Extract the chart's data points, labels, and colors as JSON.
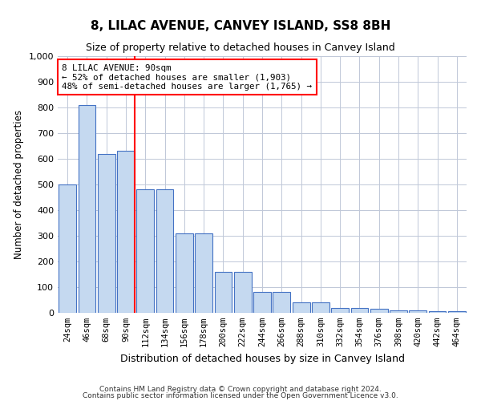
{
  "title": "8, LILAC AVENUE, CANVEY ISLAND, SS8 8BH",
  "subtitle": "Size of property relative to detached houses in Canvey Island",
  "xlabel": "Distribution of detached houses by size in Canvey Island",
  "ylabel": "Number of detached properties",
  "footer1": "Contains HM Land Registry data © Crown copyright and database right 2024.",
  "footer2": "Contains public sector information licensed under the Open Government Licence v3.0.",
  "annotation_title": "8 LILAC AVENUE: 90sqm",
  "annotation_line2": "← 52% of detached houses are smaller (1,903)",
  "annotation_line3": "48% of semi-detached houses are larger (1,765) →",
  "marker_bin": 3,
  "categories": [
    "24sqm",
    "46sqm",
    "68sqm",
    "90sqm",
    "112sqm",
    "134sqm",
    "156sqm",
    "178sqm",
    "200sqm",
    "222sqm",
    "244sqm",
    "266sqm",
    "288sqm",
    "310sqm",
    "332sqm",
    "354sqm",
    "376sqm",
    "398sqm",
    "420sqm",
    "442sqm",
    "464sqm"
  ],
  "values": [
    500,
    810,
    620,
    630,
    480,
    480,
    310,
    310,
    160,
    160,
    80,
    80,
    40,
    40,
    20,
    20,
    15,
    10,
    10,
    5,
    5
  ],
  "bar_color": "#c5d9f0",
  "bar_edge_color": "#4472c4",
  "highlight_color": "#ff0000",
  "background_color": "#ffffff",
  "grid_color": "#c0c8d8",
  "ylim": [
    0,
    1000
  ],
  "yticks": [
    0,
    100,
    200,
    300,
    400,
    500,
    600,
    700,
    800,
    900,
    1000
  ]
}
